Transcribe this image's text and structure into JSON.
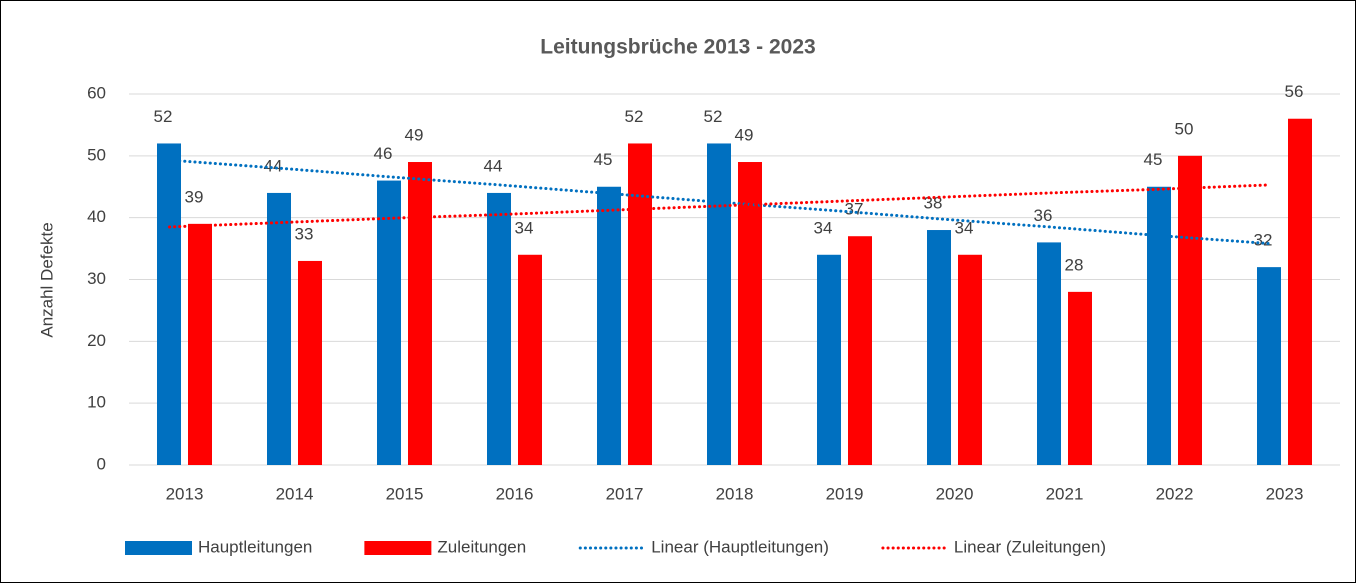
{
  "chart_data": {
    "type": "bar",
    "title": "Leitungsbrüche 2013 - 2023",
    "y_label": "Anzahl Defekte",
    "categories": [
      "2013",
      "2014",
      "2015",
      "2016",
      "2017",
      "2018",
      "2019",
      "2020",
      "2021",
      "2022",
      "2023"
    ],
    "series": [
      {
        "name": "Hauptleitungen",
        "type": "bar",
        "color": "#0070c0",
        "values": [
          52,
          44,
          46,
          44,
          45,
          52,
          34,
          38,
          36,
          45,
          32
        ]
      },
      {
        "name": "Zuleitungen",
        "type": "bar",
        "color": "#ff0000",
        "values": [
          39,
          33,
          49,
          34,
          52,
          49,
          37,
          34,
          28,
          50,
          56
        ]
      },
      {
        "name": "Linear (Hauptleitungen)",
        "type": "line",
        "style": "dotted",
        "color": "#0070c0",
        "values": [
          49.3,
          48.0,
          46.6,
          45.3,
          43.9,
          42.5,
          41.2,
          39.8,
          38.5,
          37.1,
          35.8
        ]
      },
      {
        "name": "Linear (Zuleitungen)",
        "type": "line",
        "style": "dotted",
        "color": "#ff0000",
        "values": [
          38.5,
          39.2,
          39.9,
          40.5,
          41.2,
          41.9,
          42.6,
          43.3,
          44.0,
          44.6,
          45.3
        ]
      }
    ],
    "ylim": [
      0,
      60
    ],
    "yticks": [
      0,
      10,
      20,
      30,
      40,
      50,
      60
    ],
    "grid": true,
    "legend": "bottom",
    "data_labels": true
  }
}
